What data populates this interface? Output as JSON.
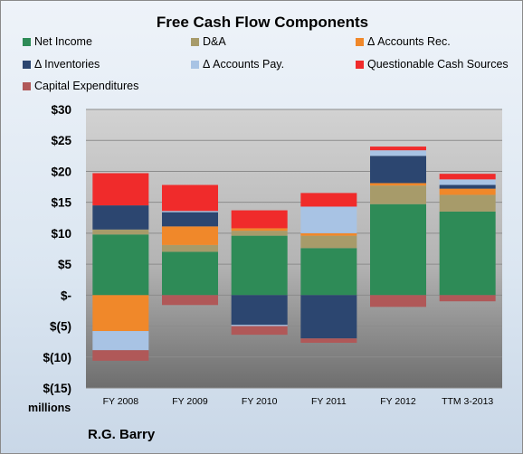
{
  "chart_data": {
    "type": "bar",
    "stacked": true,
    "title": "Free Cash Flow Components",
    "y_unit_label": "millions",
    "source_label": "R.G. Barry",
    "ylim": [
      -15,
      30
    ],
    "y_ticks": [
      {
        "value": 30,
        "label": "$30"
      },
      {
        "value": 25,
        "label": "$25"
      },
      {
        "value": 20,
        "label": "$20"
      },
      {
        "value": 15,
        "label": "$15"
      },
      {
        "value": 10,
        "label": "$10"
      },
      {
        "value": 5,
        "label": "$5"
      },
      {
        "value": 0,
        "label": "$-"
      },
      {
        "value": -5,
        "label": "$(5)"
      },
      {
        "value": -10,
        "label": "$(10)"
      },
      {
        "value": -15,
        "label": "$(15)"
      }
    ],
    "grid": true,
    "legend_position": "top",
    "categories": [
      "FY 2008",
      "FY 2009",
      "FY 2010",
      "FY 2011",
      "FY 2012",
      "TTM 3-2013"
    ],
    "series": [
      {
        "name": "Net Income",
        "color": "#2e8b57",
        "values": [
          9.8,
          7.0,
          9.6,
          7.6,
          14.7,
          13.5
        ]
      },
      {
        "name": "D&A",
        "color": "#a79b6a",
        "values": [
          0.8,
          1.1,
          0.8,
          2.0,
          3.0,
          2.7
        ]
      },
      {
        "name": "Δ Accounts Rec.",
        "color": "#f0882a",
        "values": [
          -5.8,
          3.0,
          0.4,
          0.4,
          0.4,
          1.0
        ]
      },
      {
        "name": "Δ Inventories",
        "color": "#2c4670",
        "values": [
          3.9,
          2.3,
          -4.8,
          -7.0,
          4.4,
          0.6
        ]
      },
      {
        "name": "Δ Accounts Pay.",
        "color": "#a8c3e4",
        "values": [
          -3.1,
          0.2,
          -0.2,
          4.3,
          0.9,
          0.9
        ]
      },
      {
        "name": "Questionable Cash Sources",
        "color": "#f02b2b",
        "values": [
          5.2,
          4.2,
          2.9,
          2.2,
          0.6,
          0.9
        ]
      },
      {
        "name": "Capital Expenditures",
        "color": "#b05858",
        "values": [
          -1.7,
          -1.6,
          -1.4,
          -0.7,
          -1.9,
          -1.0
        ]
      }
    ]
  }
}
